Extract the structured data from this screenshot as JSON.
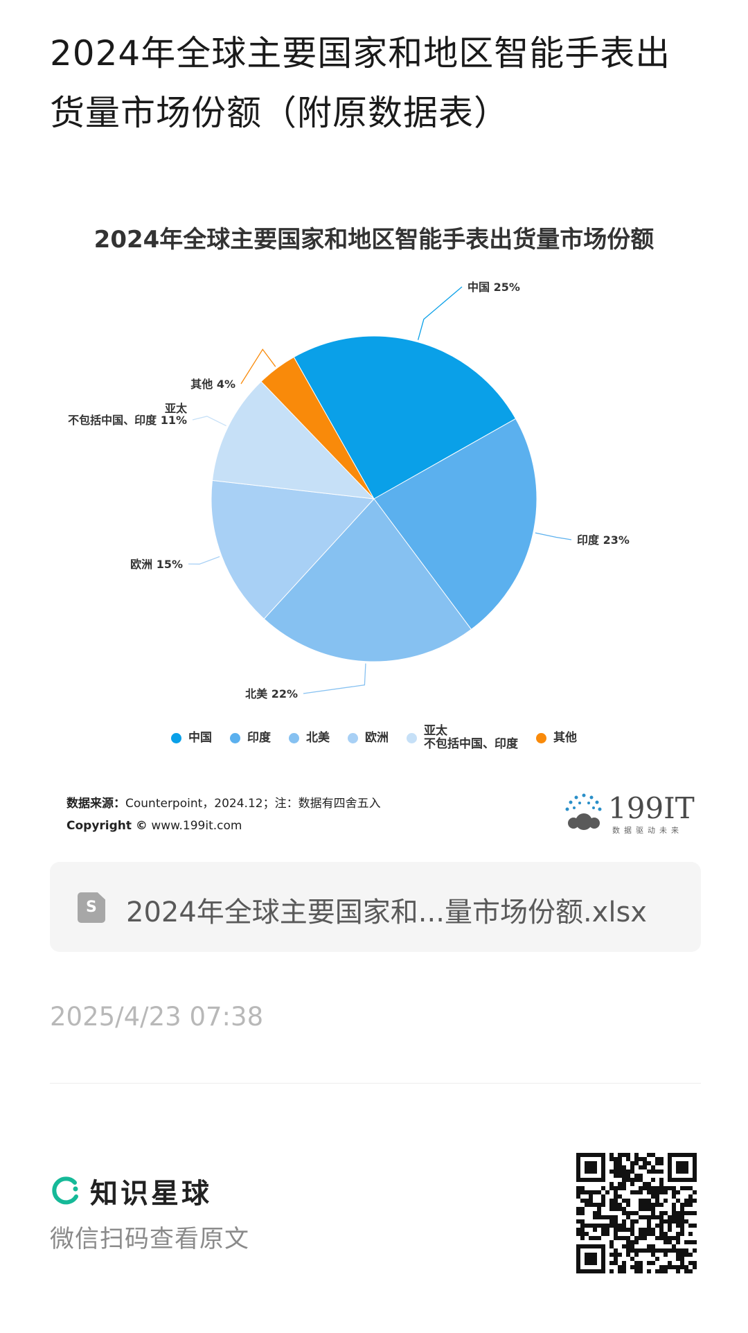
{
  "page": {
    "title": "2024年全球主要国家和地区智能手表出货量市场份额（附原数据表）"
  },
  "chart_data": {
    "type": "pie",
    "title": "2024年全球主要国家和地区智能手表出货量市场份额",
    "unit": "%",
    "slices": [
      {
        "name": "中国",
        "value": 25,
        "label": "中国 25%",
        "color": "#0aa0e8"
      },
      {
        "name": "印度",
        "value": 23,
        "label": "印度 23%",
        "color": "#5bb0ee"
      },
      {
        "name": "北美",
        "value": 22,
        "label": "北美 22%",
        "color": "#86c1f1"
      },
      {
        "name": "欧洲",
        "value": 15,
        "label": "欧洲 15%",
        "color": "#a8d0f5"
      },
      {
        "name": "亚太\n不包括中国、印度",
        "value": 11,
        "label": "亚太\n不包括中国、印度 11%",
        "color": "#c6e0f7"
      },
      {
        "name": "其他",
        "value": 4,
        "label": "其他 4%",
        "color": "#f98a0a"
      }
    ],
    "legend_position": "bottom"
  },
  "source": {
    "key": "数据来源：",
    "text": "Counterpoint，2024.12；注：数据有四舍五入",
    "copyright_key": "Copyright ©",
    "copyright_text": " www.199it.com"
  },
  "logo": {
    "text": "199IT",
    "sub": "数据驱动未来"
  },
  "file": {
    "icon": "file-doc-icon",
    "letter": "S",
    "name": "2024年全球主要国家和...量市场份额.xlsx"
  },
  "timestamp": "2025/4/23 07:38",
  "brand": {
    "name": "知识星球",
    "subtitle": "微信扫码查看原文",
    "icon": "planet-ring-icon"
  }
}
